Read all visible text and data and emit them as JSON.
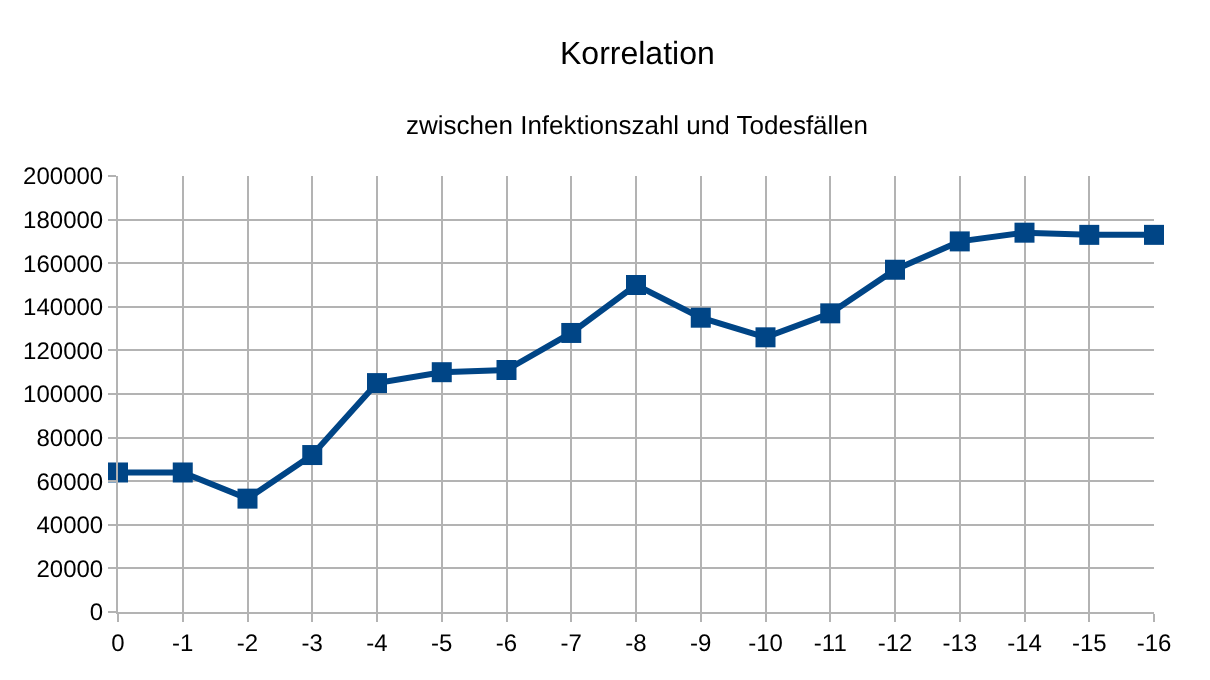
{
  "chart_data": {
    "type": "line",
    "title": "Korrelation",
    "subtitle": "zwischen Infektionszahl und Todesfällen",
    "categories": [
      "0",
      "-1",
      "-2",
      "-3",
      "-4",
      "-5",
      "-6",
      "-7",
      "-8",
      "-9",
      "-10",
      "-11",
      "-12",
      "-13",
      "-14",
      "-15",
      "-16"
    ],
    "series": [
      {
        "color": "#004586",
        "values": [
          64000,
          64000,
          52000,
          72000,
          105000,
          110000,
          111000,
          128000,
          150000,
          135000,
          126000,
          137000,
          157000,
          170000,
          174000,
          173000,
          173000
        ]
      }
    ],
    "ylim": [
      0,
      200000
    ],
    "yticks": [
      0,
      20000,
      40000,
      60000,
      80000,
      100000,
      120000,
      140000,
      160000,
      180000,
      200000
    ],
    "grid": true,
    "marker": "square",
    "line_style": "solid"
  }
}
